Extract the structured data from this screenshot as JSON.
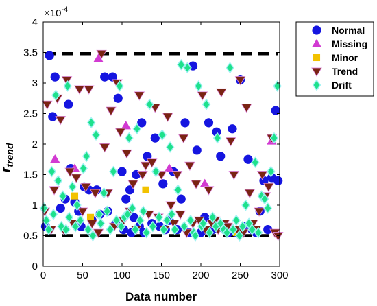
{
  "chart_data": {
    "type": "scatter",
    "title": "",
    "xlabel": "Data number",
    "ylabel_base": "r",
    "ylabel_sub": "trend",
    "y_exponent_label": "×10",
    "y_exponent_power": "-4",
    "xlim": [
      0,
      300
    ],
    "ylim": [
      0,
      4
    ],
    "x_ticks": [
      0,
      50,
      100,
      150,
      200,
      250,
      300
    ],
    "y_ticks": [
      0,
      0.5,
      1,
      1.5,
      2,
      2.5,
      3,
      3.5,
      4
    ],
    "thresholds": [
      3.48,
      0.5
    ],
    "threshold_style": "dashed black",
    "grid": false,
    "legend_position": "right, outside",
    "series": [
      {
        "name": "Normal",
        "marker": "circle",
        "color": "#1515e0",
        "x": [
          3,
          8,
          12,
          15,
          22,
          28,
          32,
          35,
          40,
          45,
          48,
          52,
          58,
          62,
          68,
          72,
          78,
          82,
          88,
          92,
          95,
          100,
          102,
          105,
          110,
          112,
          115,
          118,
          122,
          125,
          128,
          132,
          138,
          142,
          148,
          152,
          155,
          160,
          165,
          170,
          175,
          180,
          185,
          190,
          195,
          200,
          205,
          210,
          215,
          220,
          225,
          230,
          235,
          240,
          245,
          250,
          255,
          260,
          265,
          270,
          275,
          280,
          285,
          290,
          295,
          298
        ],
        "y": [
          0.65,
          3.45,
          2.45,
          3.1,
          0.95,
          1.1,
          2.65,
          1.6,
          1.05,
          0.9,
          0.65,
          1.3,
          1.25,
          0.75,
          1.25,
          0.85,
          3.1,
          0.9,
          3.1,
          0.7,
          2.75,
          1.55,
          0.6,
          1.1,
          1.25,
          0.55,
          0.8,
          1.5,
          0.65,
          2.35,
          0.55,
          1.8,
          0.7,
          2.1,
          0.65,
          1.35,
          0.6,
          0.75,
          1.55,
          0.6,
          1.1,
          2.35,
          0.55,
          3.28,
          1.9,
          0.55,
          0.8,
          2.35,
          0.6,
          2.2,
          1.8,
          0.6,
          0.55,
          2.25,
          0.55,
          3.05,
          0.65,
          1.75,
          0.6,
          0.55,
          0.9,
          1.4,
          0.6,
          1.45,
          2.55,
          1.4
        ]
      },
      {
        "name": "Missing",
        "marker": "triangle-up",
        "color": "#d23ad2",
        "x": [
          15,
          40,
          70,
          105,
          160,
          205,
          250,
          290
        ],
        "y": [
          1.75,
          1.6,
          3.4,
          2.3,
          1.6,
          1.35,
          0.6,
          2.05
        ]
      },
      {
        "name": "Minor",
        "marker": "square",
        "color": "#f2c200",
        "x": [
          40,
          60,
          130,
          245
        ],
        "y": [
          1.15,
          0.8,
          1.25,
          0.55
        ]
      },
      {
        "name": "Trend",
        "marker": "triangle-down",
        "color": "#7a2313",
        "x": [
          2,
          5,
          10,
          14,
          18,
          22,
          26,
          30,
          34,
          38,
          42,
          46,
          50,
          54,
          58,
          62,
          66,
          70,
          74,
          78,
          82,
          86,
          90,
          94,
          98,
          102,
          106,
          110,
          114,
          118,
          122,
          126,
          130,
          134,
          138,
          142,
          146,
          150,
          154,
          158,
          162,
          166,
          170,
          174,
          178,
          182,
          186,
          190,
          194,
          198,
          202,
          206,
          210,
          214,
          218,
          222,
          226,
          230,
          234,
          238,
          242,
          246,
          250,
          254,
          258,
          262,
          266,
          270,
          274,
          278,
          282,
          286,
          290,
          294,
          298
        ],
        "y": [
          0.9,
          2.65,
          0.6,
          1.25,
          2.75,
          2.4,
          0.6,
          3.05,
          1.55,
          0.7,
          1.45,
          2.9,
          0.9,
          1.3,
          2.9,
          0.7,
          1.2,
          0.55,
          3.48,
          1.95,
          1.2,
          2.55,
          0.65,
          3.0,
          2.2,
          0.75,
          1.85,
          0.9,
          1.35,
          0.6,
          2.8,
          1.5,
          1.65,
          0.85,
          1.7,
          2.6,
          0.8,
          1.5,
          0.6,
          2.45,
          1.0,
          0.7,
          1.5,
          0.85,
          2.1,
          0.55,
          1.65,
          0.7,
          1.35,
          0.75,
          2.8,
          0.6,
          1.25,
          0.7,
          0.75,
          0.6,
          2.85,
          0.7,
          0.65,
          2.05,
          1.5,
          0.6,
          3.05,
          0.55,
          2.6,
          1.2,
          0.7,
          0.6,
          0.9,
          1.5,
          1.15,
          1.3,
          2.1,
          0.55,
          0.5
        ]
      },
      {
        "name": "Drift",
        "marker": "diamond",
        "color": "#1ee18c",
        "x": [
          1,
          4,
          7,
          11,
          13,
          16,
          19,
          23,
          25,
          29,
          31,
          33,
          37,
          41,
          43,
          47,
          51,
          55,
          57,
          61,
          63,
          67,
          71,
          73,
          77,
          81,
          85,
          89,
          93,
          97,
          99,
          103,
          107,
          109,
          113,
          117,
          119,
          123,
          127,
          131,
          135,
          139,
          143,
          147,
          151,
          153,
          157,
          161,
          163,
          167,
          171,
          175,
          179,
          183,
          187,
          191,
          193,
          197,
          201,
          203,
          207,
          211,
          215,
          219,
          221,
          225,
          229,
          233,
          237,
          241,
          245,
          249,
          253,
          257,
          261,
          265,
          269,
          273,
          277,
          281,
          285,
          289,
          293,
          297
        ],
        "y": [
          0.95,
          0.75,
          0.6,
          1.55,
          0.85,
          2.8,
          1.4,
          0.65,
          1.15,
          0.6,
          2.95,
          0.8,
          1.3,
          0.65,
          1.0,
          0.75,
          1.6,
          1.8,
          0.6,
          2.35,
          0.5,
          2.15,
          0.85,
          0.7,
          1.2,
          0.9,
          0.6,
          1.55,
          0.75,
          2.95,
          0.65,
          0.8,
          0.85,
          2.1,
          0.95,
          0.6,
          2.25,
          0.75,
          0.9,
          0.55,
          2.65,
          0.65,
          1.55,
          0.8,
          2.15,
          0.6,
          0.75,
          1.95,
          0.85,
          0.6,
          1.25,
          3.3,
          0.65,
          3.25,
          0.75,
          0.55,
          0.5,
          2.95,
          0.65,
          0.7,
          2.65,
          0.55,
          0.8,
          0.65,
          2.1,
          0.7,
          0.6,
          0.55,
          3.25,
          0.6,
          0.75,
          0.5,
          0.65,
          1.0,
          0.7,
          0.6,
          1.7,
          0.55,
          1.15,
          1.1,
          0.95,
          1.55,
          2.1,
          2.95
        ]
      }
    ]
  }
}
